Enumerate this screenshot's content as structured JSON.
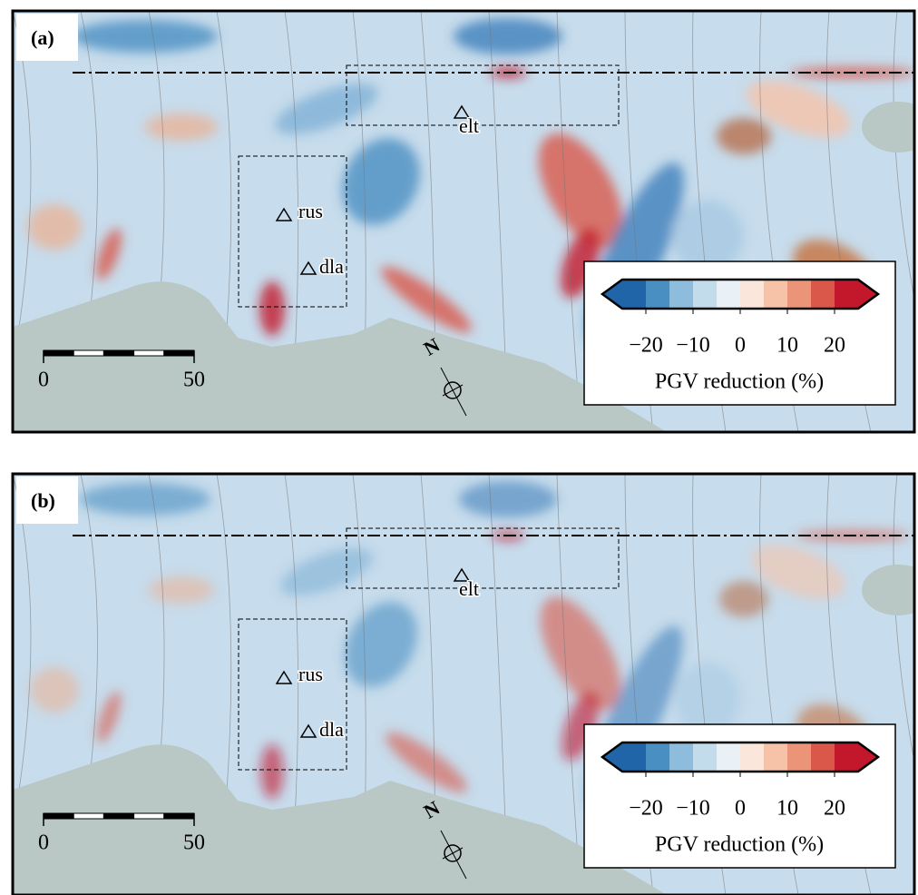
{
  "panels": [
    {
      "label": "(a)",
      "stations": [
        "elt",
        "rus",
        "dla"
      ],
      "colorbar": {
        "title": "PGV reduction (%)",
        "range": [
          -25,
          25
        ],
        "colors": [
          "#1f65a8",
          "#4a8fc2",
          "#8dbcdc",
          "#c3dcec",
          "#e9f1f6",
          "#fbe6dc",
          "#f6c3a9",
          "#eb9477",
          "#d9584a",
          "#c3172b"
        ],
        "ticks": [
          {
            "value": -20,
            "label": "−20"
          },
          {
            "value": -10,
            "label": "−10"
          },
          0,
          10,
          20
        ]
      },
      "scale_bar": {
        "ticks": [
          0,
          50
        ]
      },
      "north": "N"
    },
    {
      "label": "(b)",
      "stations": [
        "elt",
        "rus",
        "dla"
      ],
      "colorbar": {
        "title": "PGV reduction (%)",
        "range": [
          -25,
          25
        ],
        "colors": [
          "#1f65a8",
          "#4a8fc2",
          "#8dbcdc",
          "#c3dcec",
          "#e9f1f6",
          "#fbe6dc",
          "#f6c3a9",
          "#eb9477",
          "#d9584a",
          "#c3172b"
        ],
        "ticks": [
          {
            "value": -20,
            "label": "−20"
          },
          {
            "value": -10,
            "label": "−10"
          },
          0,
          10,
          20
        ]
      },
      "scale_bar": {
        "ticks": [
          0,
          50
        ]
      },
      "north": "N"
    }
  ]
}
